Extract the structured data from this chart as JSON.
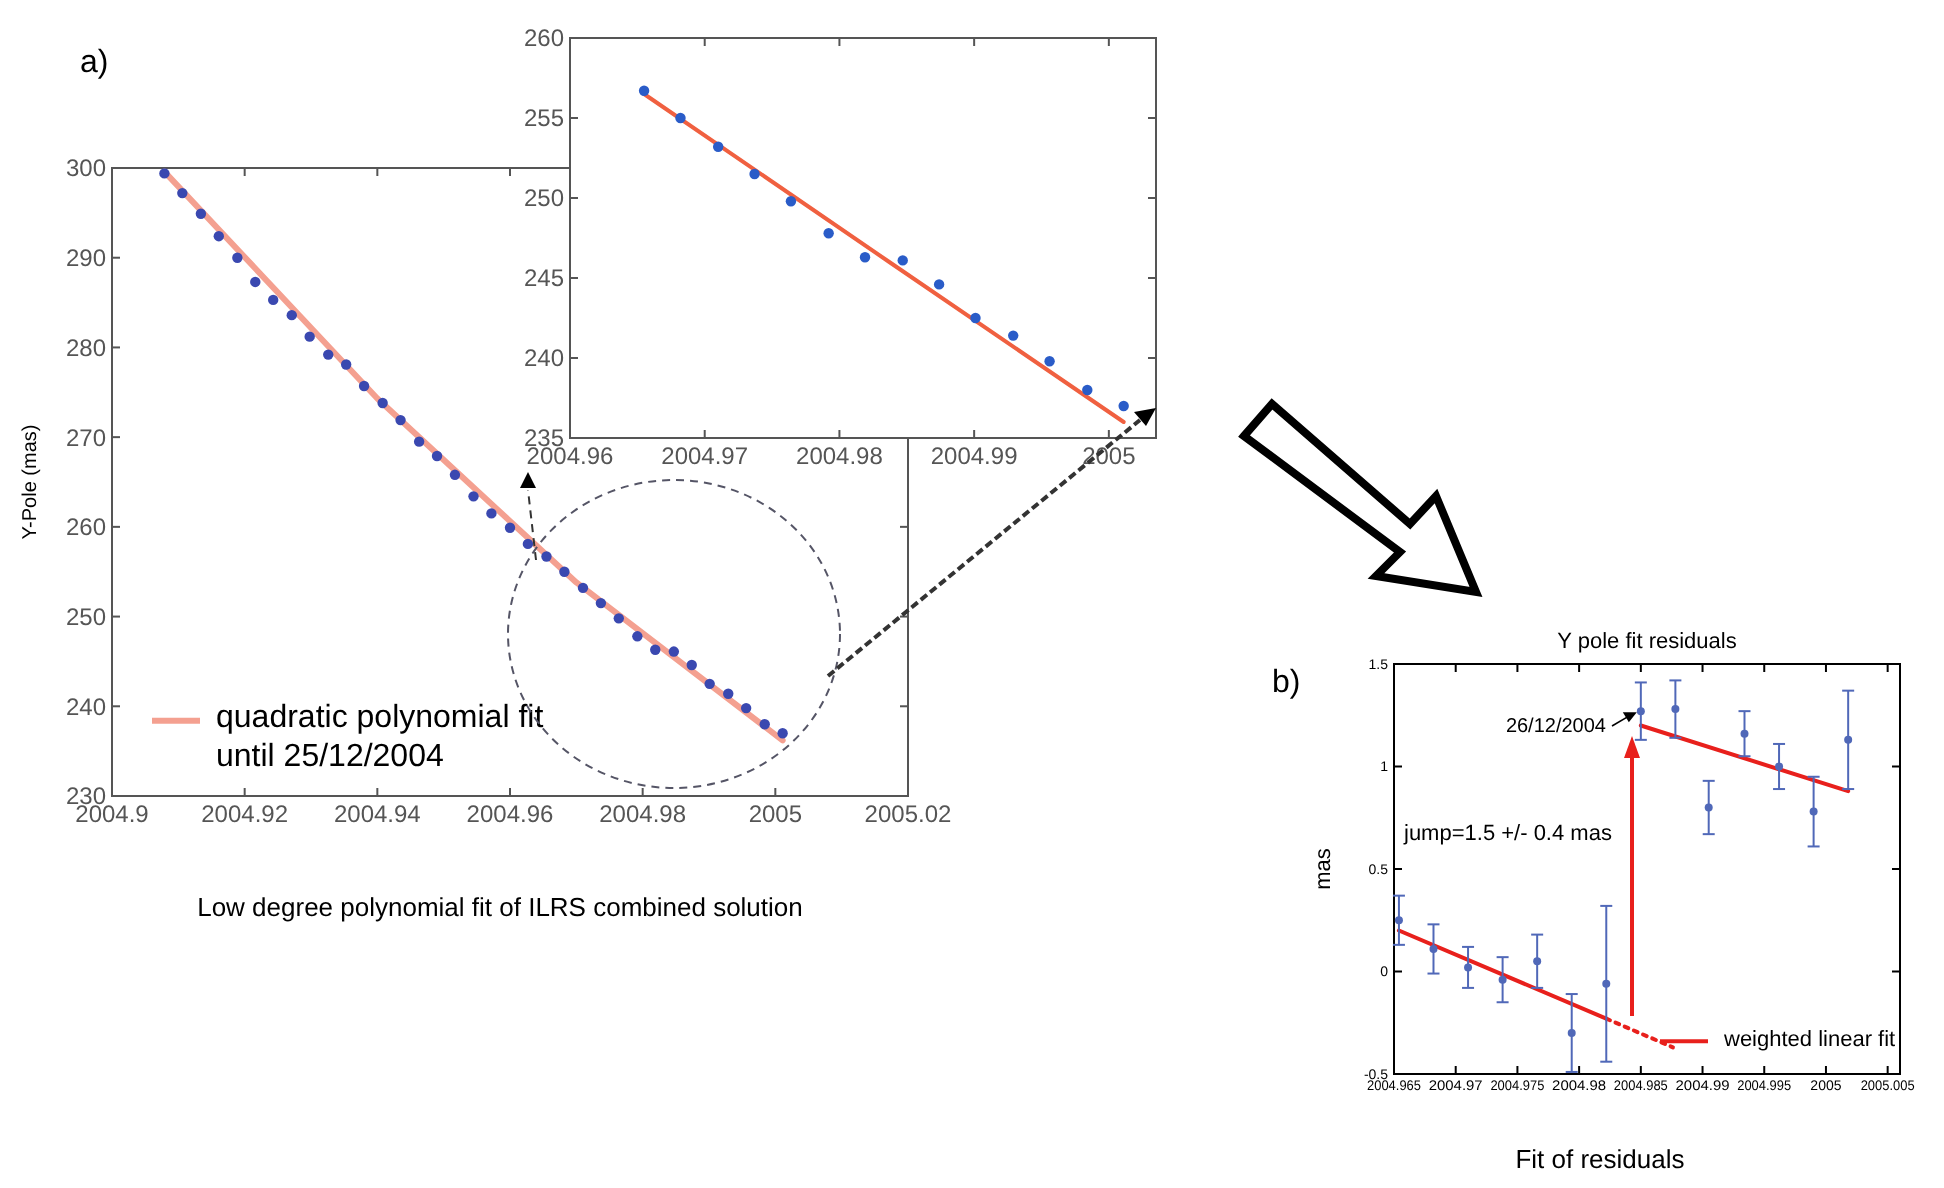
{
  "chart_data": [
    {
      "type": "scatter",
      "ylabel": "Y-Pole (mas)",
      "annotations": [
        "a)",
        "Low degree polynomial fit of ILRS combined solution"
      ],
      "xlim": [
        2004.9,
        2005.02
      ],
      "xticks": [
        2004.9,
        2004.92,
        2004.94,
        2004.96,
        2004.98,
        2005,
        2005.02
      ],
      "ylim": [
        230,
        300
      ],
      "yticks": [
        230,
        240,
        250,
        260,
        270,
        280,
        290,
        300
      ],
      "legend": "bottom left",
      "series": [
        {
          "marker": "circle",
          "color": "#3a48b0",
          "x": [
            2004.9079,
            2004.9106,
            2004.9134,
            2004.9161,
            2004.9189,
            2004.9216,
            2004.9243,
            2004.9271,
            2004.9298,
            2004.9326,
            2004.9353,
            2004.938,
            2004.9408,
            2004.9435,
            2004.9463,
            2004.949,
            2004.9517,
            2004.9545,
            2004.9572,
            2004.96,
            2004.9627,
            2004.9655,
            2004.9682,
            2004.971,
            2004.9737,
            2004.9764,
            2004.9792,
            2004.9819,
            2004.9847,
            2004.9874,
            2004.9901,
            2004.9929,
            2004.9956,
            2004.9984,
            2005.0011
          ],
          "values": [
            299.4,
            297.2,
            294.9,
            292.4,
            290.0,
            287.3,
            285.3,
            283.6,
            281.2,
            279.2,
            278.1,
            275.7,
            273.8,
            271.9,
            269.5,
            267.9,
            265.8,
            263.4,
            261.5,
            259.9,
            258.1,
            256.7,
            255.0,
            253.2,
            251.5,
            249.8,
            247.8,
            246.3,
            246.1,
            244.6,
            242.5,
            241.4,
            239.8,
            238.0,
            237.0
          ]
        },
        {
          "type": "line",
          "name": "quadratic polynomial fit until 25/12/2004",
          "color": "#f4a090",
          "x": [
            2004.9079,
            2004.94,
            2004.97,
            2005.0011
          ],
          "values": [
            299.6,
            274.3,
            253.8,
            236.2
          ]
        }
      ]
    },
    {
      "type": "scatter",
      "xlim": [
        2004.96,
        2005.0035
      ],
      "xticks": [
        2004.96,
        2004.97,
        2004.98,
        2004.99,
        2005
      ],
      "ylim": [
        235,
        260
      ],
      "yticks": [
        235,
        240,
        245,
        250,
        255,
        260
      ],
      "series": [
        {
          "marker": "circle",
          "color": "#2a5cc8",
          "x": [
            2004.9655,
            2004.9682,
            2004.971,
            2004.9737,
            2004.9764,
            2004.9792,
            2004.9819,
            2004.9847,
            2004.9874,
            2004.9901,
            2004.9929,
            2004.9956,
            2004.9984,
            2005.0011
          ],
          "values": [
            256.7,
            255.0,
            253.2,
            251.5,
            249.8,
            247.8,
            246.3,
            246.1,
            244.6,
            242.5,
            241.4,
            239.8,
            238.0,
            237.0
          ]
        },
        {
          "type": "line",
          "color": "#f06040",
          "x": [
            2004.9655,
            2004.9837,
            2005.0011
          ],
          "values": [
            256.5,
            246.0,
            236.0
          ]
        }
      ]
    },
    {
      "type": "scatter",
      "title": "Y pole fit residuals",
      "ylabel": "mas",
      "annotations": [
        "b)",
        "jump=1.5 +/- 0.4 mas",
        {
          "text": "26/12/2004",
          "x": 2004.985,
          "y": 1.265
        },
        "Fit of residuals"
      ],
      "xlim": [
        2004.965,
        2005.006
      ],
      "xticks": [
        2004.965,
        2004.97,
        2004.975,
        2004.98,
        2004.985,
        2004.99,
        2004.995,
        2005,
        2005.005
      ],
      "ylim": [
        -0.5,
        1.5
      ],
      "yticks": [
        -0.5,
        0,
        0.5,
        1,
        1.5
      ],
      "legend": "bottom right",
      "series": [
        {
          "marker": "circle",
          "color": "#5068b8",
          "x": [
            2004.9654,
            2004.9682,
            2004.971,
            2004.9738,
            2004.9766,
            2004.9794,
            2004.9822,
            2004.985,
            2004.9878,
            2004.9905,
            2004.9934,
            2004.9962,
            2004.999,
            2005.0018
          ],
          "values": [
            0.25,
            0.11,
            0.02,
            -0.04,
            0.05,
            -0.3,
            -0.06,
            1.27,
            1.28,
            0.8,
            1.16,
            1.0,
            0.78,
            1.13
          ],
          "errors": [
            0.12,
            0.12,
            0.1,
            0.11,
            0.13,
            0.19,
            0.38,
            0.14,
            0.14,
            0.13,
            0.11,
            0.11,
            0.17,
            0.24
          ]
        },
        {
          "type": "line",
          "name": "weighted linear fit",
          "color": "#e8201c",
          "x": [
            2004.9654,
            2004.9822
          ],
          "values": [
            0.2,
            -0.23
          ]
        },
        {
          "type": "line",
          "color": "#e8201c",
          "line_style": "dotted",
          "x": [
            2004.9822,
            2004.9876
          ],
          "values": [
            -0.23,
            -0.37
          ]
        },
        {
          "type": "line",
          "color": "#e8201c",
          "x": [
            2004.985,
            2005.0018
          ],
          "values": [
            1.2,
            0.88
          ]
        }
      ]
    }
  ]
}
